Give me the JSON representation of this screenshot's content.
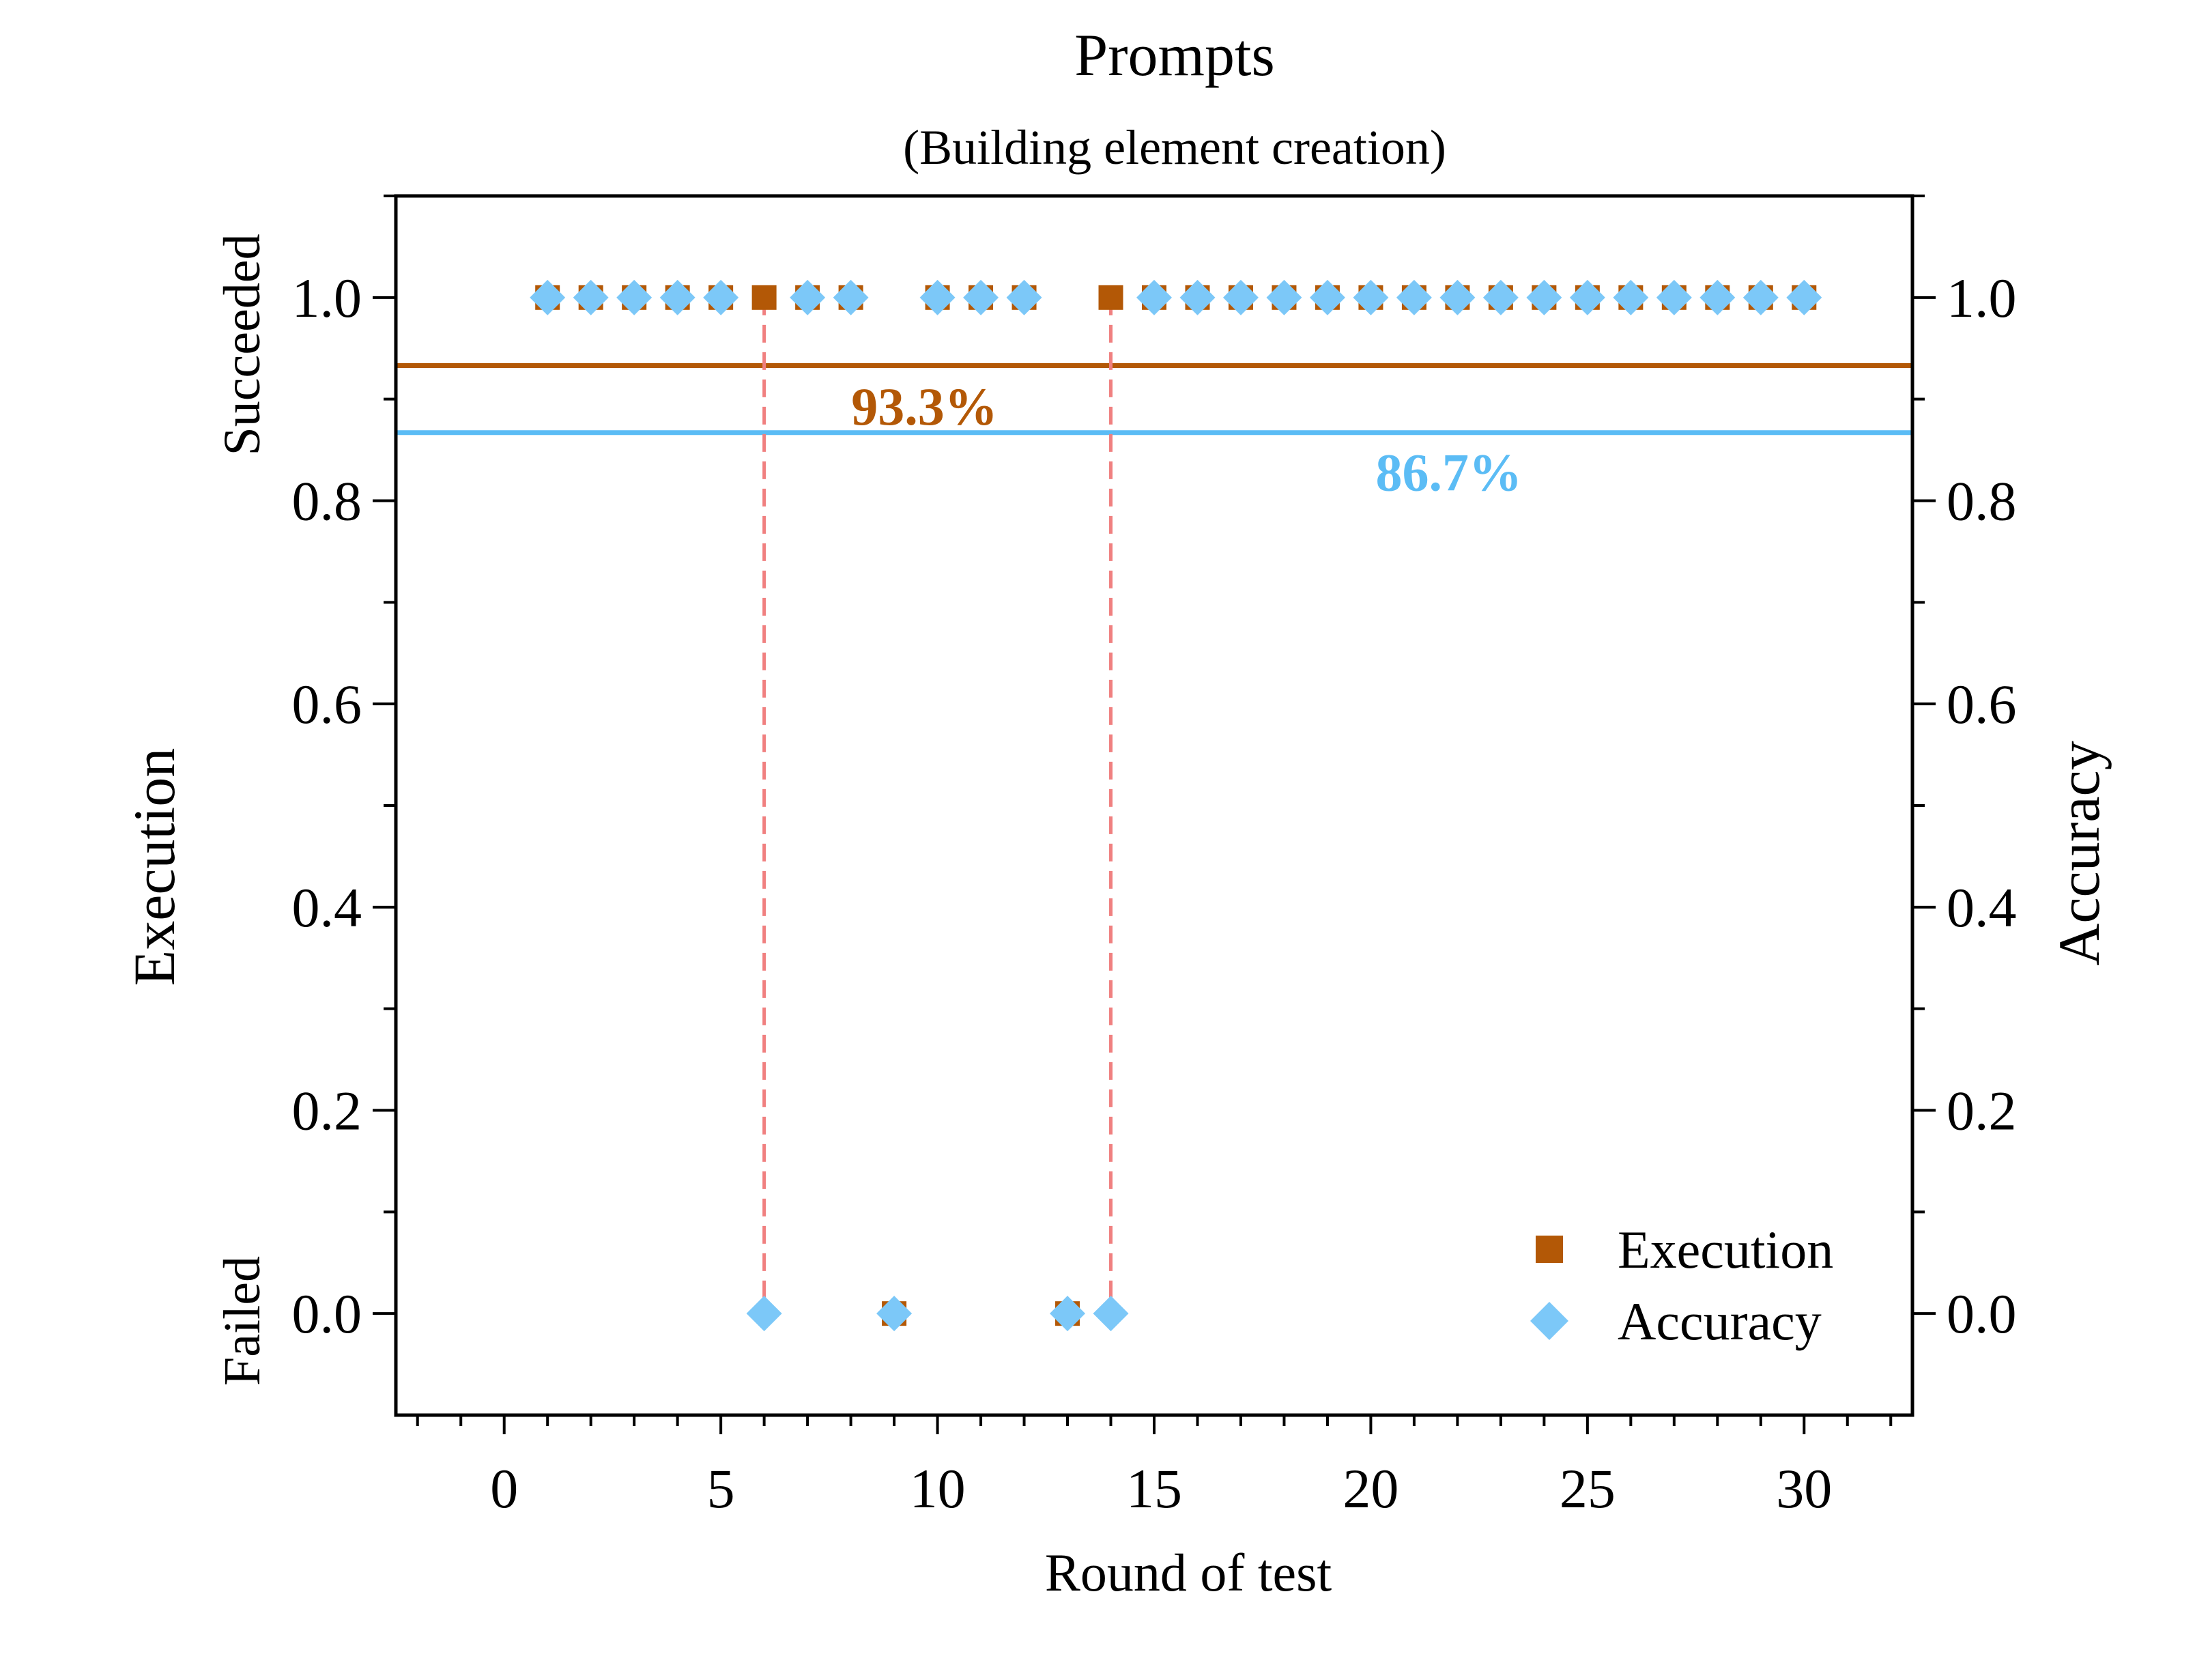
{
  "chart_data": {
    "type": "scatter",
    "title": "Prompts",
    "subtitle": "(Building element creation)",
    "xlabel": "Round of test",
    "ylabel_left": "Execution",
    "ylabel_right": "Accuracy",
    "y_state_labels": {
      "top": "Succeeded",
      "bottom": "Failed"
    },
    "xlim": [
      -2.5,
      32.5
    ],
    "ylim": [
      -0.1,
      1.1
    ],
    "x_ticks": [
      0,
      5,
      10,
      15,
      20,
      25,
      30
    ],
    "x_tick_labels": [
      "0",
      "5",
      "10",
      "15",
      "20",
      "25",
      "30"
    ],
    "y_ticks": [
      0,
      0.2,
      0.4,
      0.6,
      0.8,
      1.0
    ],
    "y_tick_labels": [
      "0.0",
      "0.2",
      "0.4",
      "0.6",
      "0.8",
      "1.0"
    ],
    "x_minor_step": 1,
    "y_minor_step": 0.1,
    "grid": false,
    "legend_position": "bottom-right",
    "series": [
      {
        "name": "Execution",
        "marker": "square",
        "color": "#B35806",
        "x": [
          1,
          2,
          3,
          4,
          5,
          6,
          7,
          8,
          9,
          10,
          11,
          12,
          13,
          14,
          15,
          16,
          17,
          18,
          19,
          20,
          21,
          22,
          23,
          24,
          25,
          26,
          27,
          28,
          29,
          30
        ],
        "y": [
          1,
          1,
          1,
          1,
          1,
          1,
          1,
          1,
          0,
          1,
          1,
          1,
          0,
          1,
          1,
          1,
          1,
          1,
          1,
          1,
          1,
          1,
          1,
          1,
          1,
          1,
          1,
          1,
          1,
          1
        ]
      },
      {
        "name": "Accuracy",
        "marker": "diamond",
        "color": "#7CC8F8",
        "x": [
          1,
          2,
          3,
          4,
          5,
          6,
          7,
          8,
          9,
          10,
          11,
          12,
          13,
          14,
          15,
          16,
          17,
          18,
          19,
          20,
          21,
          22,
          23,
          24,
          25,
          26,
          27,
          28,
          29,
          30
        ],
        "y": [
          1,
          1,
          1,
          1,
          1,
          0,
          1,
          1,
          0,
          1,
          1,
          1,
          0,
          0,
          1,
          1,
          1,
          1,
          1,
          1,
          1,
          1,
          1,
          1,
          1,
          1,
          1,
          1,
          1,
          1
        ]
      }
    ],
    "reference_lines": [
      {
        "series": "Execution",
        "y": 0.933,
        "label": "93.3%",
        "color": "#B35806",
        "label_x": 9.7,
        "label_y": 0.875
      },
      {
        "series": "Accuracy",
        "y": 0.867,
        "label": "86.7%",
        "color": "#5BBCF5",
        "label_x": 21.8,
        "label_y": 0.81
      }
    ],
    "dashed_markers": [
      {
        "x": 6,
        "y_from": 0,
        "y_to": 1,
        "color": "#F08080"
      },
      {
        "x": 14,
        "y_from": 0,
        "y_to": 1,
        "color": "#F08080"
      }
    ]
  }
}
